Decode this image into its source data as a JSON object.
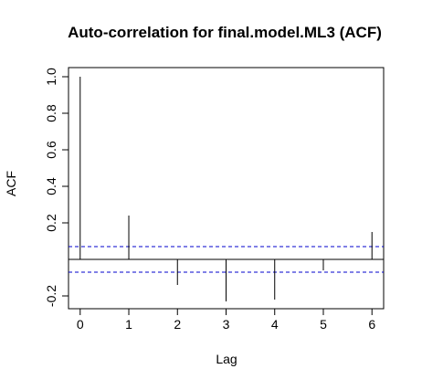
{
  "chart_data": {
    "type": "bar",
    "title": "Auto-correlation for final.model.ML3 (ACF)",
    "xlabel": "Lag",
    "ylabel": "ACF",
    "x": [
      0,
      1,
      2,
      3,
      4,
      5,
      6
    ],
    "values": [
      1.0,
      0.24,
      -0.14,
      -0.23,
      -0.22,
      -0.06,
      0.15
    ],
    "xlim": [
      -0.24,
      6.24
    ],
    "ylim": [
      -0.27,
      1.05
    ],
    "xticks": [
      0,
      1,
      2,
      3,
      4,
      5,
      6
    ],
    "yticks": [
      -0.2,
      0.2,
      0.4,
      0.6,
      0.8,
      1.0
    ],
    "ytick_labels": [
      "-0.2",
      "0.2",
      "0.4",
      "0.6",
      "0.8",
      "1.0"
    ],
    "confidence_bounds": [
      0.07,
      -0.07
    ],
    "zero_line": 0,
    "grid": false,
    "legend": "none",
    "colors": {
      "bars": "#000000",
      "confidence": "#0000cc",
      "frame": "#000000"
    }
  }
}
